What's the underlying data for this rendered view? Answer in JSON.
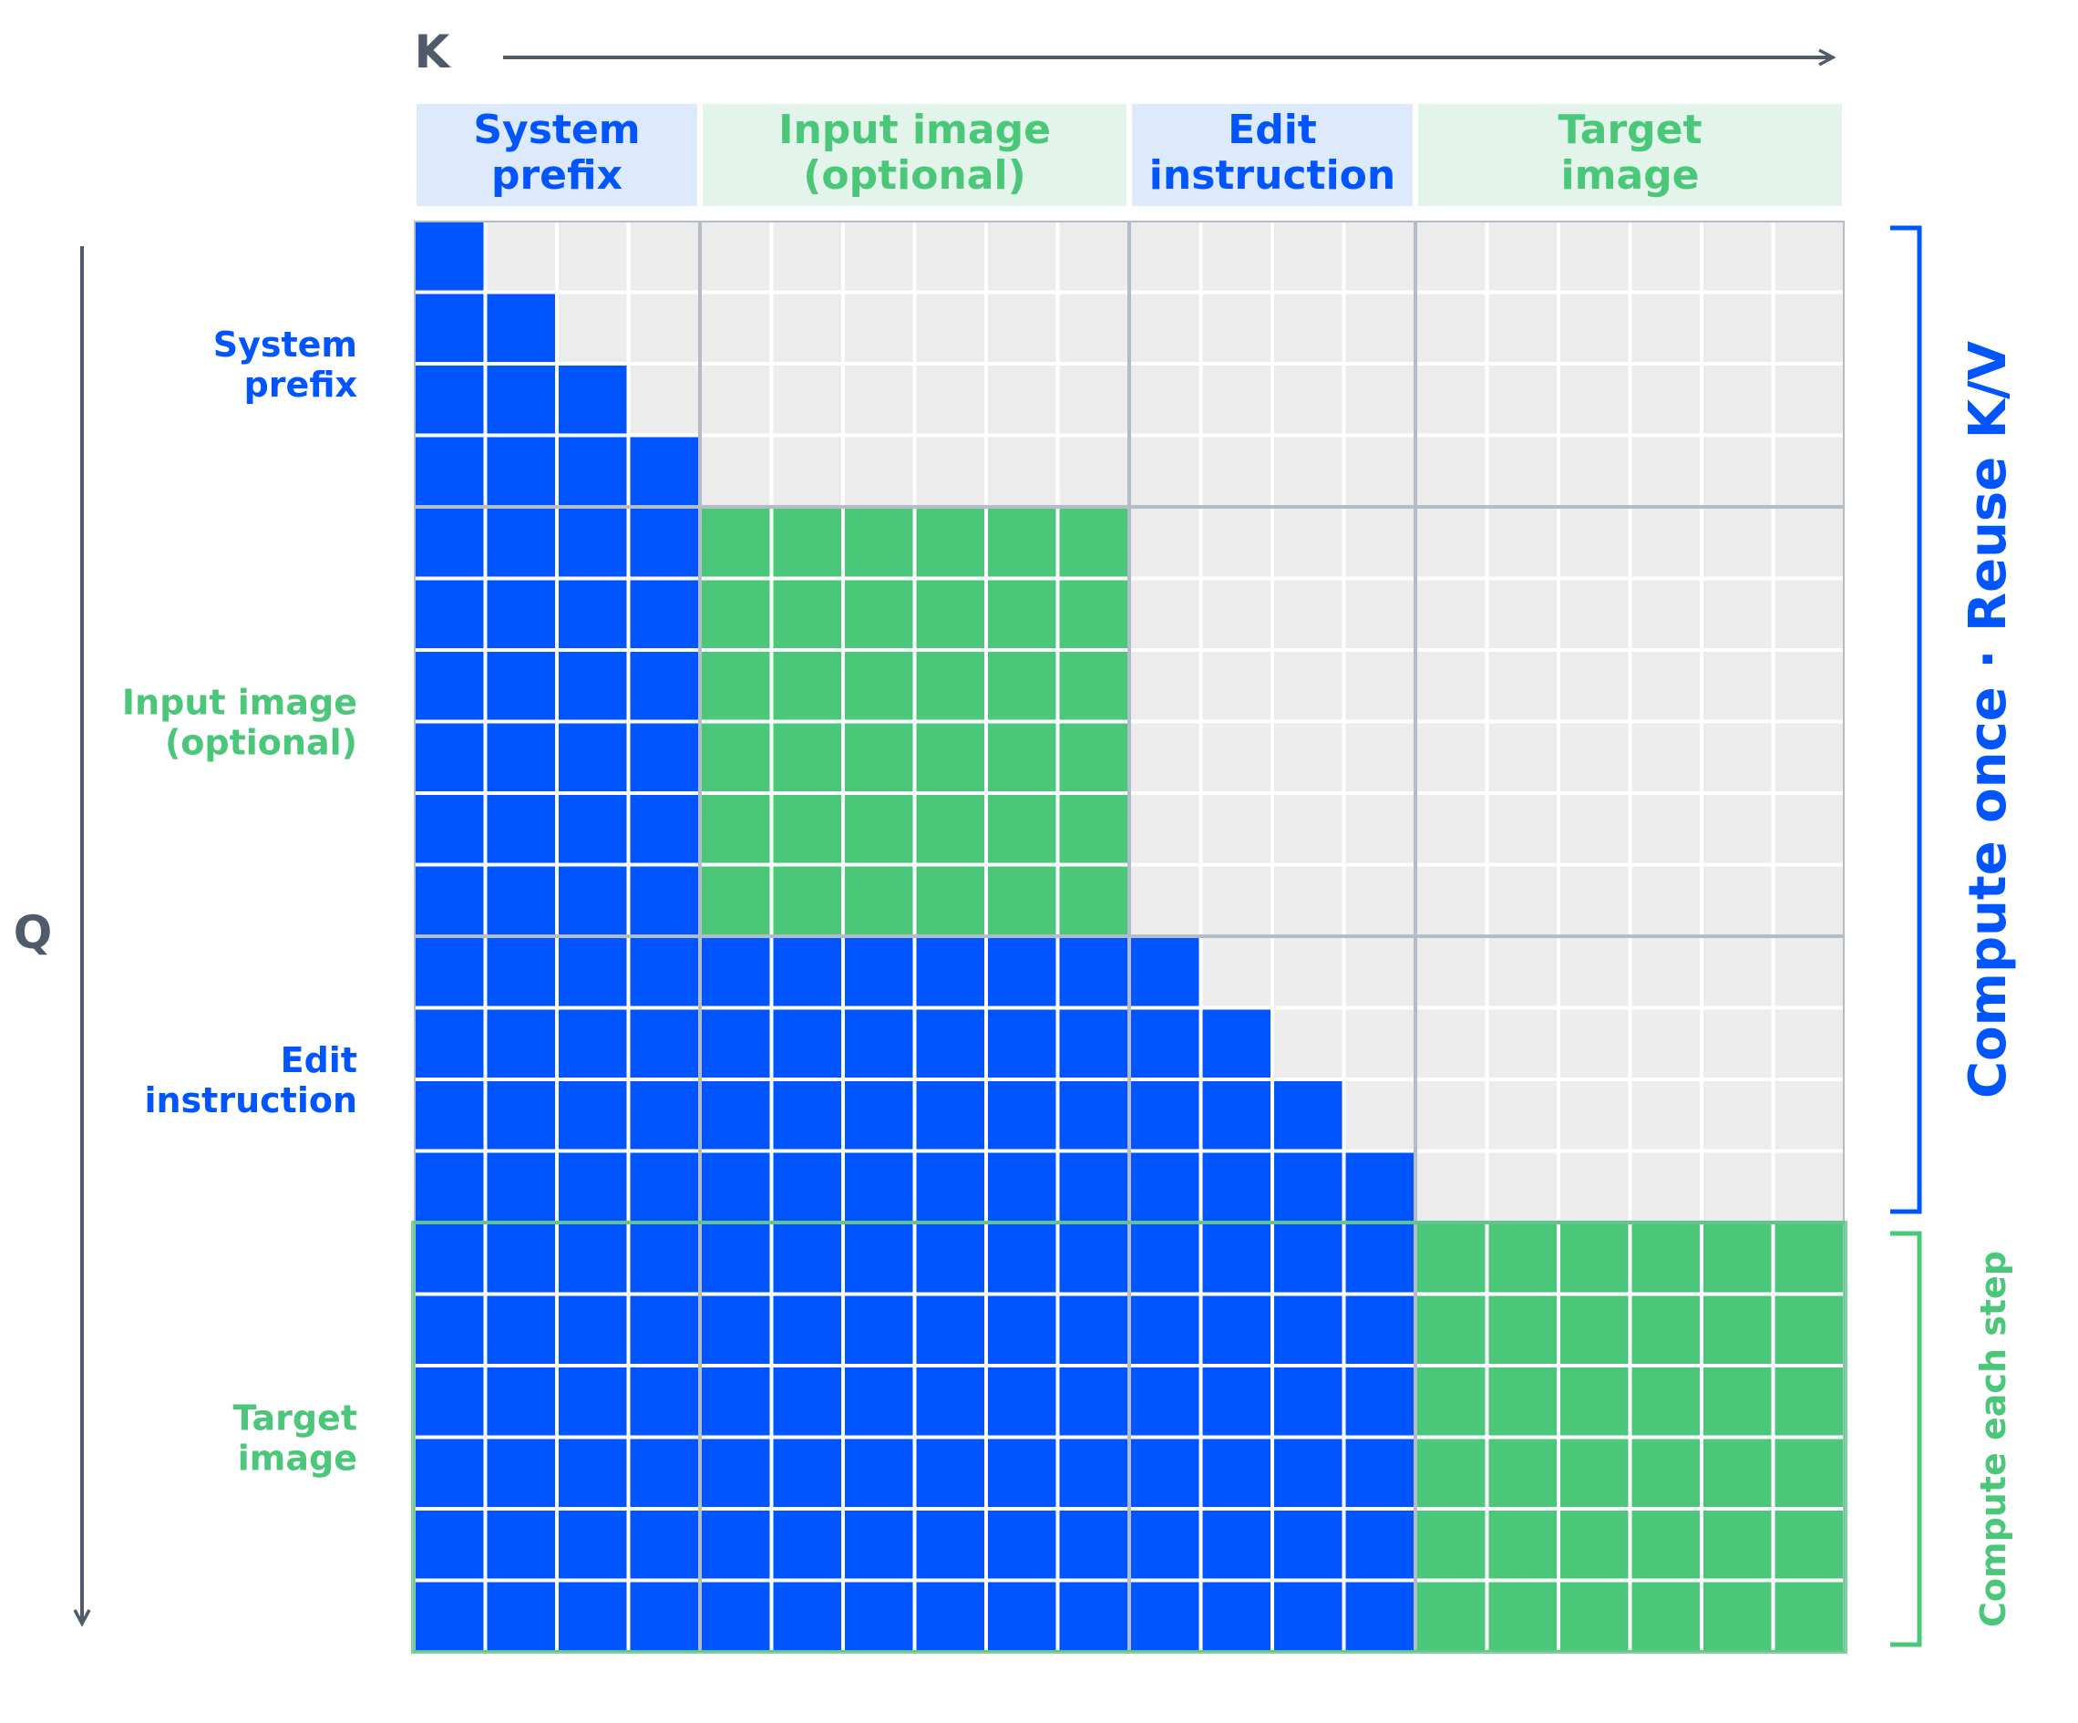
{
  "axes": {
    "k_label": "K",
    "q_label": "Q"
  },
  "colors": {
    "blue": "#0055ff",
    "green": "#4bc77a",
    "empty": "#ececec",
    "axis": "#4f5b6b",
    "header_blue_bg": "#dde9fc",
    "header_green_bg": "#e3f5ea",
    "block_border": "#b4bcc8"
  },
  "groups": [
    {
      "header": [
        "System",
        "prefix"
      ],
      "row_label": [
        "System",
        "prefix"
      ],
      "size": 4,
      "color": "blue",
      "kind": "causal"
    },
    {
      "header": [
        "Input image",
        "(optional)"
      ],
      "row_label": [
        "Input image",
        "(optional)"
      ],
      "size": 6,
      "color": "green",
      "kind": "full"
    },
    {
      "header": [
        "Edit",
        "instruction"
      ],
      "row_label": [
        "Edit",
        "instruction"
      ],
      "size": 4,
      "color": "blue",
      "kind": "causal"
    },
    {
      "header": [
        "Target",
        "image"
      ],
      "row_label": [
        "Target",
        "image"
      ],
      "size": 6,
      "color": "green",
      "kind": "full"
    }
  ],
  "brackets": {
    "reuse": {
      "label": "Compute once · Reuse K/V",
      "color": "blue"
    },
    "step": {
      "label": "Compute each step",
      "color": "green"
    }
  }
}
